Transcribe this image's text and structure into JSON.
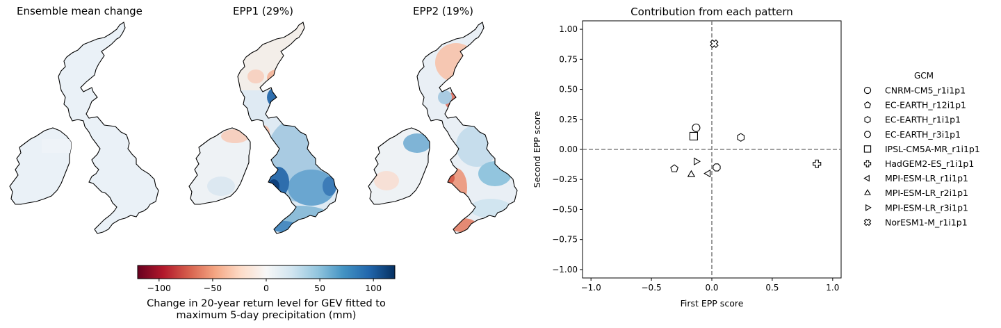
{
  "panels": {
    "ensemble_title": "Ensemble mean change",
    "epp1_title": "EPP1 (29%)",
    "epp2_title": "EPP2 (19%)"
  },
  "colorbar": {
    "ticks": [
      "−100",
      "−50",
      "0",
      "50",
      "100"
    ],
    "tick_values": [
      -100,
      -50,
      0,
      50,
      100
    ],
    "range": [
      -120,
      120
    ],
    "label_line1": "Change in 20-year return level for GEV fitted to",
    "label_line2": "maximum 5-day precipitation (mm)",
    "colormap": [
      "#67001f",
      "#b2182b",
      "#d6604d",
      "#f4a582",
      "#fddbc7",
      "#f7f7f7",
      "#d1e5f0",
      "#92c5de",
      "#4393c3",
      "#2166ac",
      "#053061"
    ]
  },
  "chart_data": {
    "type": "scatter",
    "title": "Contribution from each pattern",
    "xlabel": "First EPP score",
    "ylabel": "Second EPP score",
    "xlim": [
      -1.07,
      1.07
    ],
    "ylim": [
      -1.07,
      1.07
    ],
    "xticks": [
      -1.0,
      -0.5,
      0.0,
      0.5,
      1.0
    ],
    "xtick_labels": [
      "−1.0",
      "−0.5",
      "0.0",
      "0.5",
      "1.0"
    ],
    "yticks": [
      1.0,
      0.75,
      0.5,
      0.25,
      0.0,
      -0.25,
      -0.5,
      -0.75,
      -1.0
    ],
    "ytick_labels": [
      "1.00",
      "0.75",
      "0.50",
      "0.25",
      "0.00",
      "−0.25",
      "−0.50",
      "−0.75",
      "−1.00"
    ],
    "reference_lines": {
      "x": 0,
      "y": 0,
      "style": "dashed",
      "color": "#808080"
    },
    "legend_title": "GCM",
    "legend_position": "right",
    "series": [
      {
        "name": "CNRM-CM5_r1i1p1",
        "marker": "circle",
        "x": -0.13,
        "y": 0.18
      },
      {
        "name": "EC-EARTH_r12i1p1",
        "marker": "pentagon",
        "x": -0.31,
        "y": -0.16
      },
      {
        "name": "EC-EARTH_r1i1p1",
        "marker": "hexagon",
        "x": 0.24,
        "y": 0.1
      },
      {
        "name": "EC-EARTH_r3i1p1",
        "marker": "octagon",
        "x": 0.04,
        "y": -0.15
      },
      {
        "name": "IPSL-CM5A-MR_r1i1p1",
        "marker": "square",
        "x": -0.15,
        "y": 0.11
      },
      {
        "name": "HadGEM2-ES_r1i1p1",
        "marker": "plus",
        "x": 0.87,
        "y": -0.12
      },
      {
        "name": "MPI-ESM-LR_r1i1p1",
        "marker": "triangle-left",
        "x": -0.03,
        "y": -0.2
      },
      {
        "name": "MPI-ESM-LR_r2i1p1",
        "marker": "triangle-up",
        "x": -0.17,
        "y": -0.21
      },
      {
        "name": "MPI-ESM-LR_r3i1p1",
        "marker": "triangle-right",
        "x": -0.13,
        "y": -0.1
      },
      {
        "name": "NorESM1-M_r1i1p1",
        "marker": "x-filled",
        "x": 0.02,
        "y": 0.88
      }
    ]
  }
}
